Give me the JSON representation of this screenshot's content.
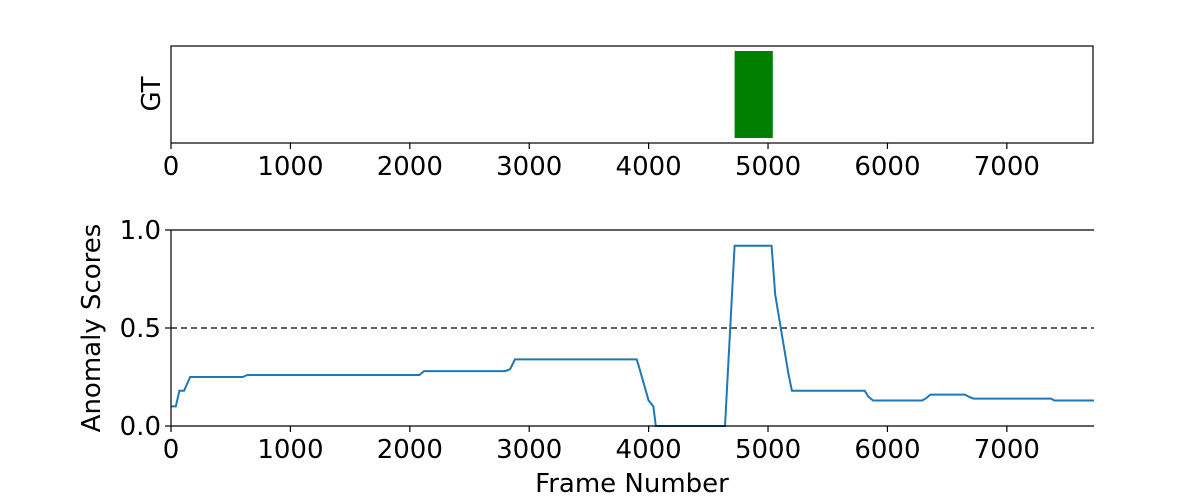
{
  "chart_data": [
    {
      "type": "bar",
      "ylabel": "GT",
      "xlim": [
        0,
        7730
      ],
      "x_ticks": [
        "0",
        "1000",
        "2000",
        "3000",
        "4000",
        "5000",
        "6000",
        "7000"
      ],
      "x_tick_values": [
        0,
        1000,
        2000,
        3000,
        4000,
        5000,
        6000,
        7000
      ],
      "segments": [
        {
          "start": 4720,
          "end": 5040
        }
      ],
      "colors": {
        "segment": "#008000"
      }
    },
    {
      "type": "line",
      "xlabel": "Frame Number",
      "ylabel": "Anomaly Scores",
      "xlim": [
        0,
        7730
      ],
      "ylim": [
        0,
        1.0
      ],
      "x_ticks": [
        "0",
        "1000",
        "2000",
        "3000",
        "4000",
        "5000",
        "6000",
        "7000"
      ],
      "x_tick_values": [
        0,
        1000,
        2000,
        3000,
        4000,
        5000,
        6000,
        7000
      ],
      "y_ticks": [
        "0.0",
        "0.5",
        "1.0"
      ],
      "y_tick_values": [
        0,
        0.5,
        1.0
      ],
      "reference_lines": [
        {
          "y": 1.0,
          "style": "solid"
        },
        {
          "y": 0.5,
          "style": "dashed"
        }
      ],
      "series": [
        {
          "x": [
            0,
            40,
            70,
            110,
            160,
            600,
            640,
            2080,
            2120,
            2800,
            2840,
            2880,
            3900,
            3920,
            4000,
            4040,
            4060,
            4640,
            4720,
            5030,
            5060,
            5170,
            5200,
            5810,
            5840,
            5880,
            6290,
            6320,
            6360,
            6650,
            6680,
            6720,
            7370,
            7400,
            7730
          ],
          "y": [
            0.1,
            0.1,
            0.18,
            0.18,
            0.25,
            0.25,
            0.26,
            0.26,
            0.28,
            0.28,
            0.29,
            0.34,
            0.34,
            0.3,
            0.13,
            0.1,
            0.0,
            0.0,
            0.92,
            0.92,
            0.67,
            0.27,
            0.18,
            0.18,
            0.15,
            0.13,
            0.13,
            0.14,
            0.16,
            0.16,
            0.15,
            0.14,
            0.14,
            0.13,
            0.13
          ]
        }
      ],
      "colors": {
        "line": "#1f77b4"
      }
    }
  ]
}
